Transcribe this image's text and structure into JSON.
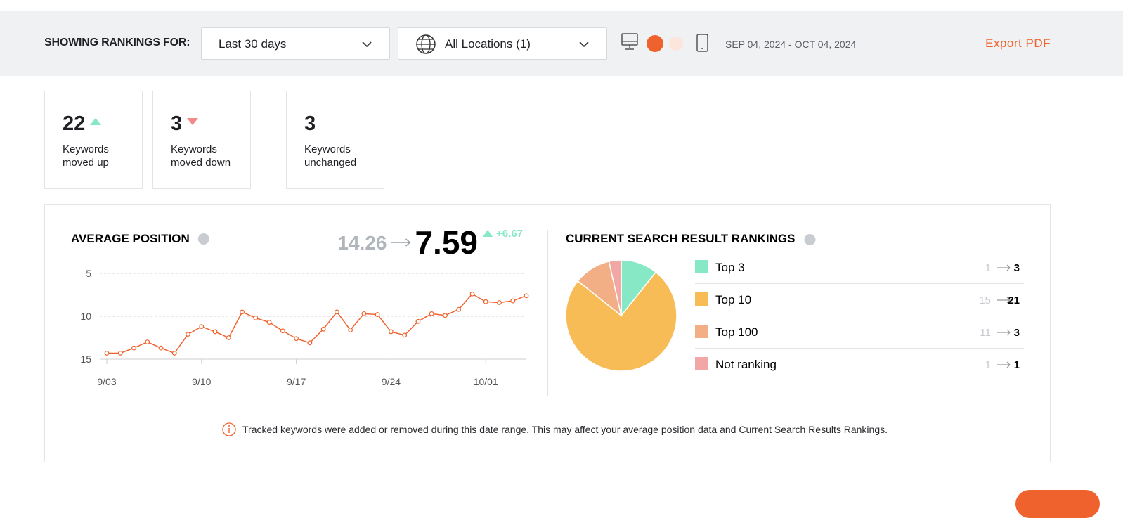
{
  "toolbar": {
    "label": "SHOWING RANKINGS FOR:",
    "period": "Last 30 days",
    "locations": "All Locations (1)",
    "date_range": "SEP 04, 2024 - OCT 04, 2024",
    "export": "Export PDF"
  },
  "summary": [
    {
      "value": 22,
      "label": "Keywords moved up",
      "trend": "up"
    },
    {
      "value": 3,
      "label": "Keywords moved down",
      "trend": "down"
    },
    {
      "value": 3,
      "label": "Keywords unchanged"
    }
  ],
  "chart_data": [
    {
      "type": "line",
      "title": "AVERAGE POSITION",
      "start": 14.26,
      "end": 7.59,
      "change": "+6.67",
      "categories": [
        "9/03",
        null,
        null,
        null,
        null,
        null,
        null,
        "9/10",
        null,
        null,
        null,
        null,
        null,
        null,
        "9/17",
        null,
        null,
        null,
        null,
        null,
        null,
        "9/24",
        null,
        null,
        null,
        null,
        null,
        null,
        "10/01",
        null,
        null,
        null
      ],
      "series": [
        {
          "color": "#f0622d",
          "values": [
            14.3,
            14.3,
            13.7,
            13.0,
            13.7,
            14.3,
            12.1,
            11.2,
            11.8,
            12.5,
            9.5,
            10.2,
            10.7,
            11.7,
            12.6,
            13.1,
            11.5,
            9.5,
            11.6,
            9.7,
            9.8,
            11.8,
            12.2,
            10.6,
            9.7,
            9.9,
            9.2,
            7.4,
            8.3,
            8.4,
            8.2,
            7.6
          ]
        }
      ],
      "ylim": [
        15,
        5
      ],
      "yticks": [
        5,
        10,
        15
      ],
      "grid": true
    },
    {
      "type": "pie",
      "title": "CURRENT SEARCH RESULT RANKINGS",
      "categories": [
        "Top 3",
        "Top 10",
        "Top 100",
        "Not ranking"
      ],
      "values": [
        3,
        21,
        3,
        1
      ],
      "previous_values": [
        1,
        15,
        11,
        1
      ],
      "colors": [
        "#86e8c4",
        "#f7bc55",
        "#f2ae85",
        "#f2a7a7"
      ]
    }
  ],
  "note": "Tracked keywords were added or removed during this date range. This may affect your average position data and Current Search Results Rankings."
}
